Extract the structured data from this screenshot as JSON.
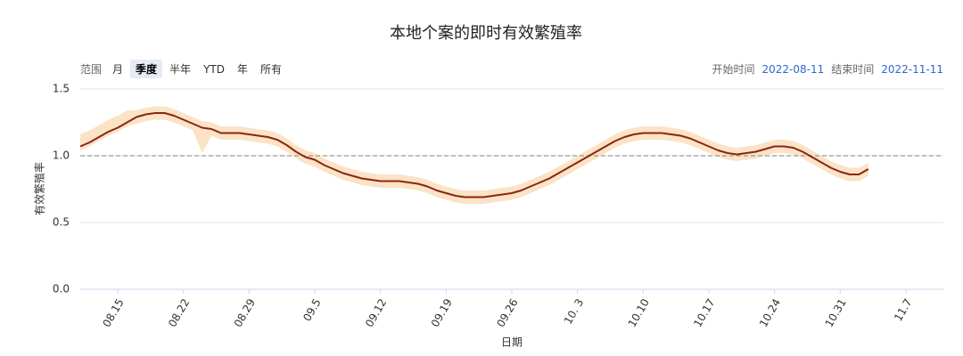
{
  "toolbar": {
    "range_label": "范围",
    "buttons": [
      "月",
      "季度",
      "半年",
      "YTD",
      "年",
      "所有"
    ],
    "selected_index": 1,
    "start_label": "开始时间",
    "start": "2022-08-11",
    "end_label": "结束时间",
    "end": "2022-11-11"
  },
  "chart_data": {
    "type": "line",
    "title": "本地个案的即时有效繁殖率",
    "x_label": "日期",
    "y_label": "有效繁殖率",
    "categories": [
      null,
      null,
      null,
      null,
      "08.15",
      null,
      null,
      null,
      null,
      null,
      null,
      "08.22",
      null,
      null,
      null,
      null,
      null,
      null,
      "08.29",
      null,
      null,
      null,
      null,
      null,
      null,
      "09.5",
      null,
      null,
      null,
      null,
      null,
      null,
      "09.12",
      null,
      null,
      null,
      null,
      null,
      null,
      "09.19",
      null,
      null,
      null,
      null,
      null,
      null,
      "09.26",
      null,
      null,
      null,
      null,
      null,
      null,
      "10. 3",
      null,
      null,
      null,
      null,
      null,
      null,
      "10.10",
      null,
      null,
      null,
      null,
      null,
      null,
      "10.17",
      null,
      null,
      null,
      null,
      null,
      null,
      "10.24",
      null,
      null,
      null,
      null,
      null,
      null,
      "10.31",
      null,
      null,
      null,
      null,
      null,
      null,
      "11.7",
      null,
      null,
      null,
      null
    ],
    "series": [
      {
        "color": "#8b2516",
        "values": [
          1.07,
          1.1,
          1.14,
          1.18,
          1.21,
          1.25,
          1.29,
          1.31,
          1.32,
          1.32,
          1.3,
          1.27,
          1.24,
          1.21,
          1.2,
          1.17,
          1.17,
          1.17,
          1.16,
          1.15,
          1.14,
          1.12,
          1.08,
          1.03,
          0.99,
          0.97,
          0.93,
          0.9,
          0.87,
          0.85,
          0.83,
          0.82,
          0.81,
          0.81,
          0.81,
          0.8,
          0.79,
          0.77,
          0.74,
          0.72,
          0.7,
          0.69,
          0.69,
          0.69,
          0.7,
          0.71,
          0.72,
          0.74,
          0.77,
          0.8,
          0.83,
          0.87,
          0.91,
          0.95,
          0.99,
          1.03,
          1.07,
          1.11,
          1.14,
          1.16,
          1.17,
          1.17,
          1.17,
          1.16,
          1.15,
          1.13,
          1.1,
          1.07,
          1.04,
          1.02,
          1.01,
          1.02,
          1.03,
          1.05,
          1.07,
          1.07,
          1.06,
          1.03,
          0.99,
          0.95,
          0.91,
          0.88,
          0.86,
          0.86,
          0.9,
          null,
          null,
          null,
          null,
          null,
          null,
          null,
          null
        ]
      }
    ],
    "band": {
      "color": "#fbe3c5",
      "high": [
        1.16,
        1.19,
        1.23,
        1.27,
        1.3,
        1.34,
        1.34,
        1.36,
        1.37,
        1.37,
        1.35,
        1.32,
        1.29,
        1.26,
        1.25,
        1.22,
        1.22,
        1.22,
        1.21,
        1.2,
        1.19,
        1.17,
        1.13,
        1.08,
        1.04,
        1.02,
        0.98,
        0.95,
        0.92,
        0.9,
        0.88,
        0.87,
        0.86,
        0.86,
        0.86,
        0.85,
        0.84,
        0.82,
        0.79,
        0.77,
        0.75,
        0.74,
        0.74,
        0.74,
        0.75,
        0.76,
        0.77,
        0.79,
        0.82,
        0.85,
        0.88,
        0.92,
        0.96,
        1.0,
        1.04,
        1.08,
        1.12,
        1.16,
        1.19,
        1.21,
        1.22,
        1.22,
        1.22,
        1.21,
        1.2,
        1.18,
        1.15,
        1.12,
        1.09,
        1.07,
        1.06,
        1.07,
        1.08,
        1.1,
        1.12,
        1.12,
        1.11,
        1.08,
        1.04,
        1.0,
        0.96,
        0.93,
        0.91,
        0.91,
        0.95,
        null,
        null,
        null,
        null,
        null,
        null,
        null,
        null
      ],
      "low": [
        1.04,
        1.07,
        1.11,
        1.15,
        1.18,
        1.22,
        1.24,
        1.26,
        1.27,
        1.27,
        1.25,
        1.22,
        1.19,
        1.02,
        1.15,
        1.12,
        1.12,
        1.12,
        1.11,
        1.1,
        1.09,
        1.07,
        1.03,
        0.98,
        0.94,
        0.92,
        0.88,
        0.85,
        0.82,
        0.8,
        0.78,
        0.77,
        0.76,
        0.76,
        0.76,
        0.75,
        0.74,
        0.72,
        0.69,
        0.67,
        0.65,
        0.64,
        0.64,
        0.64,
        0.65,
        0.66,
        0.67,
        0.69,
        0.72,
        0.75,
        0.78,
        0.82,
        0.86,
        0.9,
        0.94,
        0.98,
        1.02,
        1.06,
        1.09,
        1.11,
        1.12,
        1.12,
        1.12,
        1.11,
        1.1,
        1.08,
        1.05,
        1.02,
        0.99,
        0.97,
        0.96,
        0.97,
        0.98,
        1.0,
        1.02,
        1.02,
        1.01,
        0.98,
        0.94,
        0.9,
        0.86,
        0.83,
        0.81,
        0.81,
        0.85,
        null,
        null,
        null,
        null,
        null,
        null,
        null,
        null
      ]
    },
    "reference_line": 1,
    "ylim": [
      0,
      1.5
    ],
    "yticks": [
      {
        "value": 0,
        "label": "0.0"
      },
      0.5,
      {
        "value": 1,
        "label": "1.0"
      },
      1.5
    ],
    "grid": true
  }
}
